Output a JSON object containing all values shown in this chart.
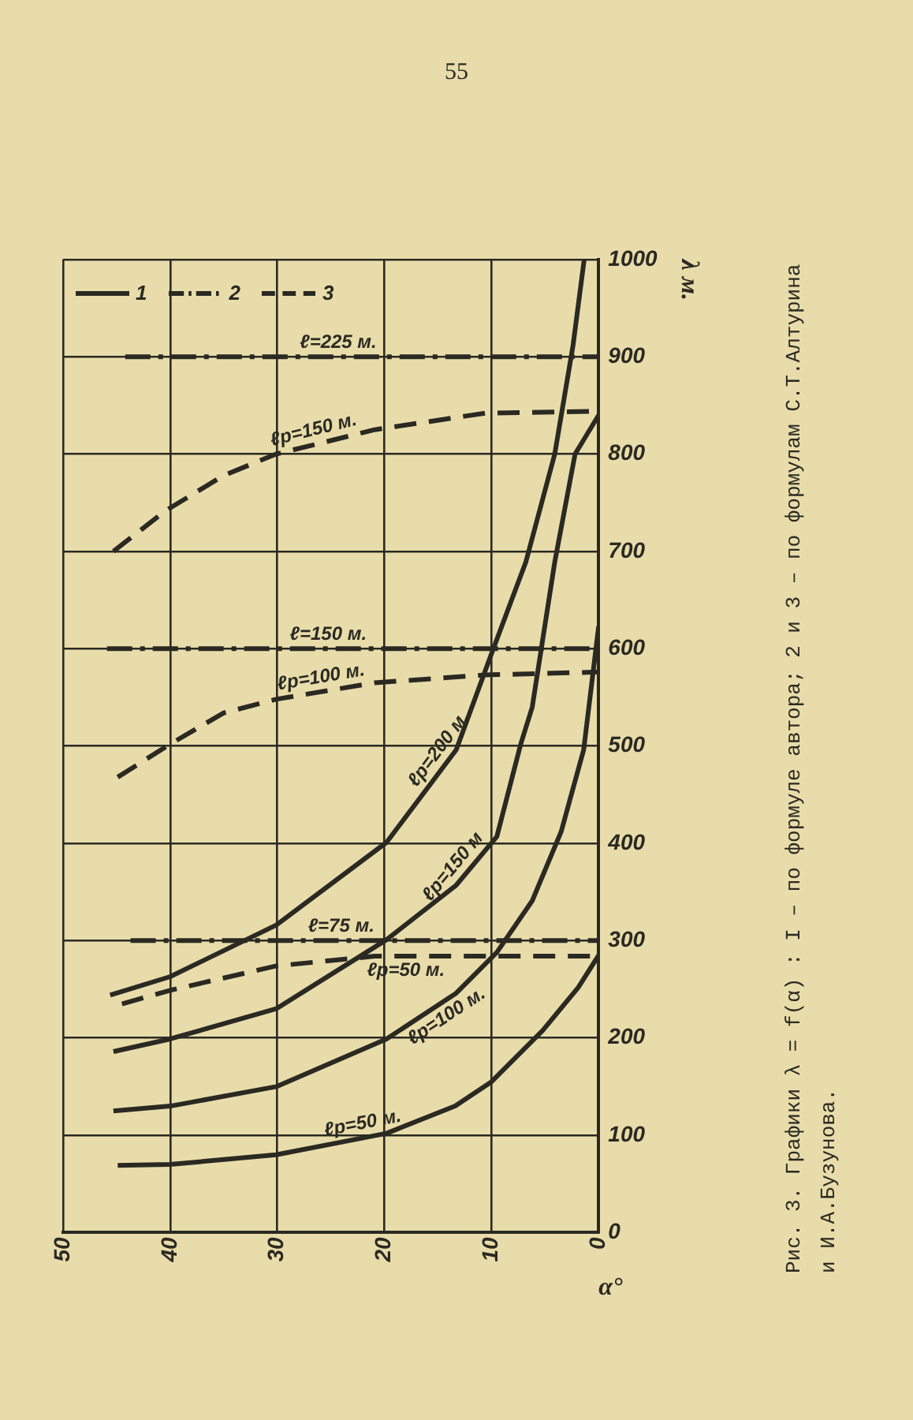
{
  "chart_data": {
    "type": "line",
    "title": "Рис. 3. Графики λ = f(α) : I – по формуле автора; 2 и 3 – по формулам С.Т.Алтурина и И.А.Бузунова.",
    "xlabel": "α°",
    "ylabel": "λ м.",
    "xlim": [
      50,
      0
    ],
    "xticks": [
      50,
      40,
      30,
      20,
      10,
      0
    ],
    "ylim": [
      0,
      1000
    ],
    "yticks": [
      0,
      100,
      200,
      300,
      400,
      500,
      600,
      700,
      800,
      900,
      1000
    ],
    "grid": true,
    "marker": "none",
    "series": [
      {
        "name": "ℓp=50 м.",
        "color": "#2a2a22",
        "line_style": "solid",
        "x": [
          44.9,
          40,
          30.1,
          19.8,
          13.4,
          10,
          5.2,
          1.9,
          0
        ],
        "values": [
          69,
          70,
          80,
          102,
          130,
          155,
          208,
          252,
          285
        ]
      },
      {
        "name": "ℓp=100 м.",
        "color": "#2a2a22",
        "line_style": "solid",
        "x": [
          45.3,
          40,
          30.1,
          19.8,
          13.3,
          9.5,
          6.2,
          3.5,
          1.4,
          0
        ],
        "values": [
          125,
          130,
          150,
          199,
          246,
          288,
          341,
          412,
          496,
          623
        ]
      },
      {
        "name": "ℓp=150 м",
        "color": "#2a2a22",
        "line_style": "solid",
        "x": [
          45.3,
          40,
          30.1,
          19.8,
          13.3,
          9.5,
          7.3,
          6.2,
          4.1,
          2.2,
          0
        ],
        "values": [
          186,
          199,
          230,
          301,
          357,
          407,
          501,
          540,
          689,
          800,
          840
        ]
      },
      {
        "name": "ℓp=200 м.",
        "color": "#2a2a22",
        "line_style": "solid",
        "x": [
          45.6,
          40,
          30.1,
          19.8,
          13.3,
          10,
          6.8,
          4.1,
          2.4,
          1.35
        ],
        "values": [
          244,
          263,
          316,
          401,
          496,
          595,
          689,
          800,
          911,
          1000
        ]
      },
      {
        "name": "ℓ=225 м.",
        "color": "#2a2a22",
        "line_style": "dashdot",
        "x": [
          44.2,
          0
        ],
        "values": [
          900,
          900
        ]
      },
      {
        "name": "ℓ=150 м.",
        "color": "#2a2a22",
        "line_style": "dashdot",
        "x": [
          45.9,
          0
        ],
        "values": [
          600,
          600
        ]
      },
      {
        "name": "ℓ=75 м.",
        "color": "#2a2a22",
        "line_style": "dashdot",
        "x": [
          43.7,
          0
        ],
        "values": [
          300,
          300
        ]
      },
      {
        "name": "ℓp=150 м.",
        "color": "#2a2a22",
        "line_style": "dashed",
        "x": [
          45.3,
          40.4,
          35,
          30.1,
          20.9,
          10.6,
          0
        ],
        "values": [
          700,
          742,
          778,
          800,
          825,
          842,
          844
        ]
      },
      {
        "name": "ℓp=100 м.",
        "color": "#2a2a22",
        "line_style": "dashed",
        "x": [
          44.9,
          40,
          35,
          30.1,
          20.9,
          10.6,
          0
        ],
        "values": [
          468,
          502,
          534,
          548,
          565,
          573,
          576
        ]
      },
      {
        "name": "ℓp=50 м.",
        "color": "#2a2a22",
        "line_style": "dashed",
        "x": [
          44.5,
          40,
          30.1,
          20.9,
          0
        ],
        "values": [
          235,
          249,
          274,
          284,
          284
        ]
      }
    ],
    "annotations": [
      "55",
      "1",
      "2",
      "3"
    ]
  }
}
